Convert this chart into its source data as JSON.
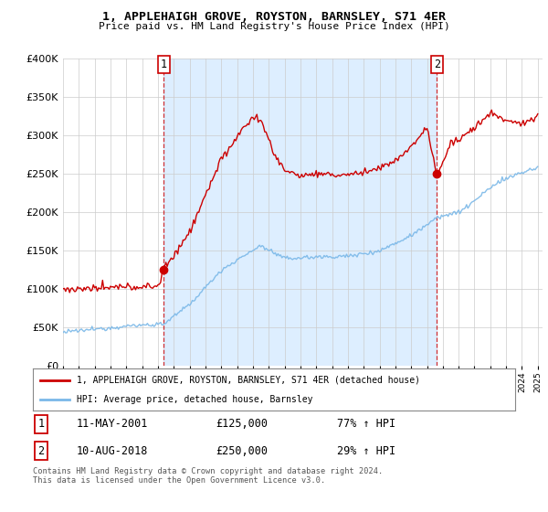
{
  "title": "1, APPLEHAIGH GROVE, ROYSTON, BARNSLEY, S71 4ER",
  "subtitle": "Price paid vs. HM Land Registry's House Price Index (HPI)",
  "legend_line1": "1, APPLEHAIGH GROVE, ROYSTON, BARNSLEY, S71 4ER (detached house)",
  "legend_line2": "HPI: Average price, detached house, Barnsley",
  "transaction1_date": "11-MAY-2001",
  "transaction1_price": "£125,000",
  "transaction1_hpi": "77% ↑ HPI",
  "transaction2_date": "10-AUG-2018",
  "transaction2_price": "£250,000",
  "transaction2_hpi": "29% ↑ HPI",
  "footnote": "Contains HM Land Registry data © Crown copyright and database right 2024.\nThis data is licensed under the Open Government Licence v3.0.",
  "hpi_color": "#7ab8e8",
  "price_color": "#cc0000",
  "shade_color": "#ddeeff",
  "ylim": [
    0,
    400000
  ],
  "yticks": [
    0,
    50000,
    100000,
    150000,
    200000,
    250000,
    300000,
    350000,
    400000
  ],
  "bg_color": "#ffffff",
  "grid_color": "#cccccc",
  "t1": 2001.375,
  "p1": 125000,
  "t2": 2018.625,
  "p2": 250000
}
